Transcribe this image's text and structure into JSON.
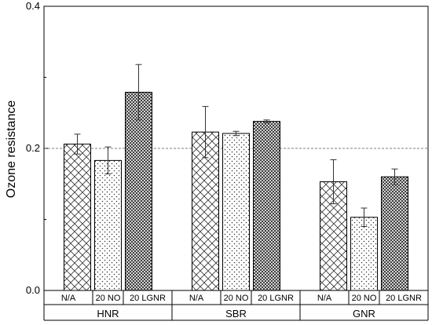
{
  "chart_data": {
    "type": "bar",
    "title": "",
    "ylabel": "Ozone resistance",
    "ylim": [
      0.0,
      0.4
    ],
    "yticks": [
      "0.0",
      "0.2",
      "0.4"
    ],
    "reference_line": {
      "y": 0.2,
      "style": "dashed"
    },
    "groups": [
      "HNR",
      "SBR",
      "GNR"
    ],
    "categories": [
      "N/A",
      "20 NO",
      "20 LGNR"
    ],
    "series": [
      {
        "category": "N/A",
        "pattern": "crosshatch",
        "values": [
          0.206,
          0.223,
          0.153
        ],
        "errors": [
          0.014,
          0.036,
          0.031
        ]
      },
      {
        "category": "20 NO",
        "pattern": "dots",
        "values": [
          0.183,
          0.221,
          0.103
        ],
        "errors": [
          0.019,
          0.003,
          0.013
        ]
      },
      {
        "category": "20 LGNR",
        "pattern": "dense-crosshatch",
        "values": [
          0.279,
          0.238,
          0.16
        ],
        "errors": [
          0.039,
          0.002,
          0.011
        ]
      }
    ]
  }
}
